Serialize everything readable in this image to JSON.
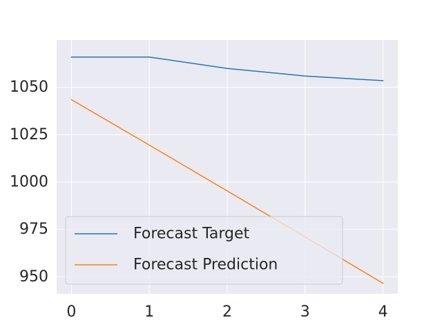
{
  "chart_data": {
    "type": "line",
    "title": "",
    "xlabel": "",
    "ylabel": "",
    "x": [
      0,
      1,
      2,
      3,
      4
    ],
    "xticks": [
      "0",
      "1",
      "2",
      "3",
      "4"
    ],
    "yticks": [
      "950",
      "975",
      "1000",
      "1025",
      "1050"
    ],
    "ytick_values": [
      950,
      975,
      1000,
      1025,
      1050
    ],
    "xlim": [
      -0.19,
      4.19
    ],
    "ylim": [
      941,
      1075
    ],
    "grid": true,
    "legend_position": "lower-left",
    "series": [
      {
        "name": "Forecast Target",
        "color": "#1f77b4",
        "values": [
          1066,
          1066,
          1060,
          1056,
          1053.5
        ]
      },
      {
        "name": "Forecast Prediction",
        "color": "#ff7f0e",
        "values": [
          1043.5,
          1019.5,
          995.3,
          971,
          946.5
        ]
      }
    ]
  }
}
